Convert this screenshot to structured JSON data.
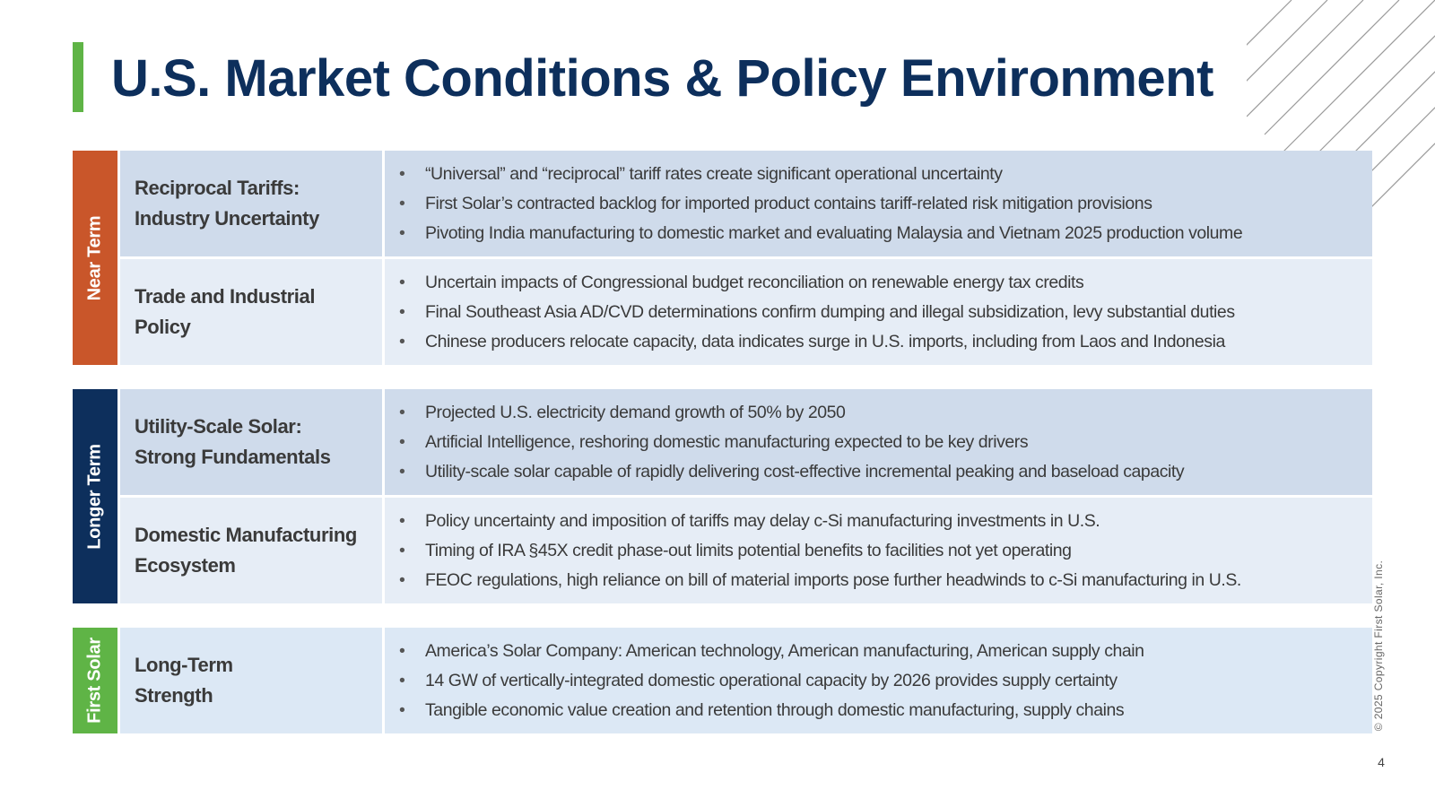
{
  "slide": {
    "title": "U.S. Market Conditions & Policy Environment",
    "copyright": "© 2025 Copyright First Solar, Inc.",
    "page_number": "4"
  },
  "colors": {
    "title": "#0d2f5c",
    "accent_green": "#5fb446",
    "near_term": "#c9562a",
    "longer_term": "#0d2f5c",
    "first_solar": "#5fb446"
  },
  "groups": [
    {
      "label": "Near Term",
      "color": "#c9562a",
      "rows": [
        {
          "label": "Reciprocal Tariffs:\nIndustry Uncertainty",
          "bullets": [
            "“Universal” and “reciprocal” tariff rates create significant operational uncertainty",
            "First Solar’s contracted backlog for imported product contains tariff-related risk mitigation provisions",
            "Pivoting India manufacturing to domestic market and evaluating Malaysia and Vietnam 2025 production volume"
          ]
        },
        {
          "label": "Trade and Industrial\nPolicy",
          "bullets": [
            "Uncertain impacts of Congressional budget reconciliation on renewable energy tax credits",
            "Final Southeast Asia AD/CVD determinations confirm dumping and illegal subsidization, levy substantial duties",
            "Chinese producers relocate capacity, data indicates surge in U.S. imports, including from Laos and Indonesia"
          ]
        }
      ]
    },
    {
      "label": "Longer Term",
      "color": "#0d2f5c",
      "rows": [
        {
          "label": "Utility-Scale Solar:\nStrong Fundamentals",
          "bullets": [
            "Projected U.S. electricity demand growth of 50% by 2050",
            "Artificial Intelligence, reshoring domestic manufacturing expected to be key drivers",
            "Utility-scale solar capable of rapidly delivering cost-effective incremental peaking and baseload capacity"
          ]
        },
        {
          "label": "Domestic Manufacturing\nEcosystem",
          "bullets": [
            "Policy uncertainty and imposition of tariffs may delay c-Si manufacturing investments in U.S.",
            "Timing of IRA §45X credit phase-out limits potential benefits to facilities not yet operating",
            "FEOC regulations, high reliance on bill of material imports pose further headwinds to c-Si manufacturing in U.S."
          ]
        }
      ]
    },
    {
      "label": "First Solar",
      "color": "#5fb446",
      "rows": [
        {
          "label": "Long-Term\nStrength",
          "bullets": [
            "America’s Solar Company: American technology, American manufacturing, American supply chain",
            "14 GW of vertically-integrated domestic operational capacity by 2026 provides supply certainty",
            "Tangible economic value creation and retention through domestic manufacturing, supply chains"
          ]
        }
      ]
    }
  ]
}
